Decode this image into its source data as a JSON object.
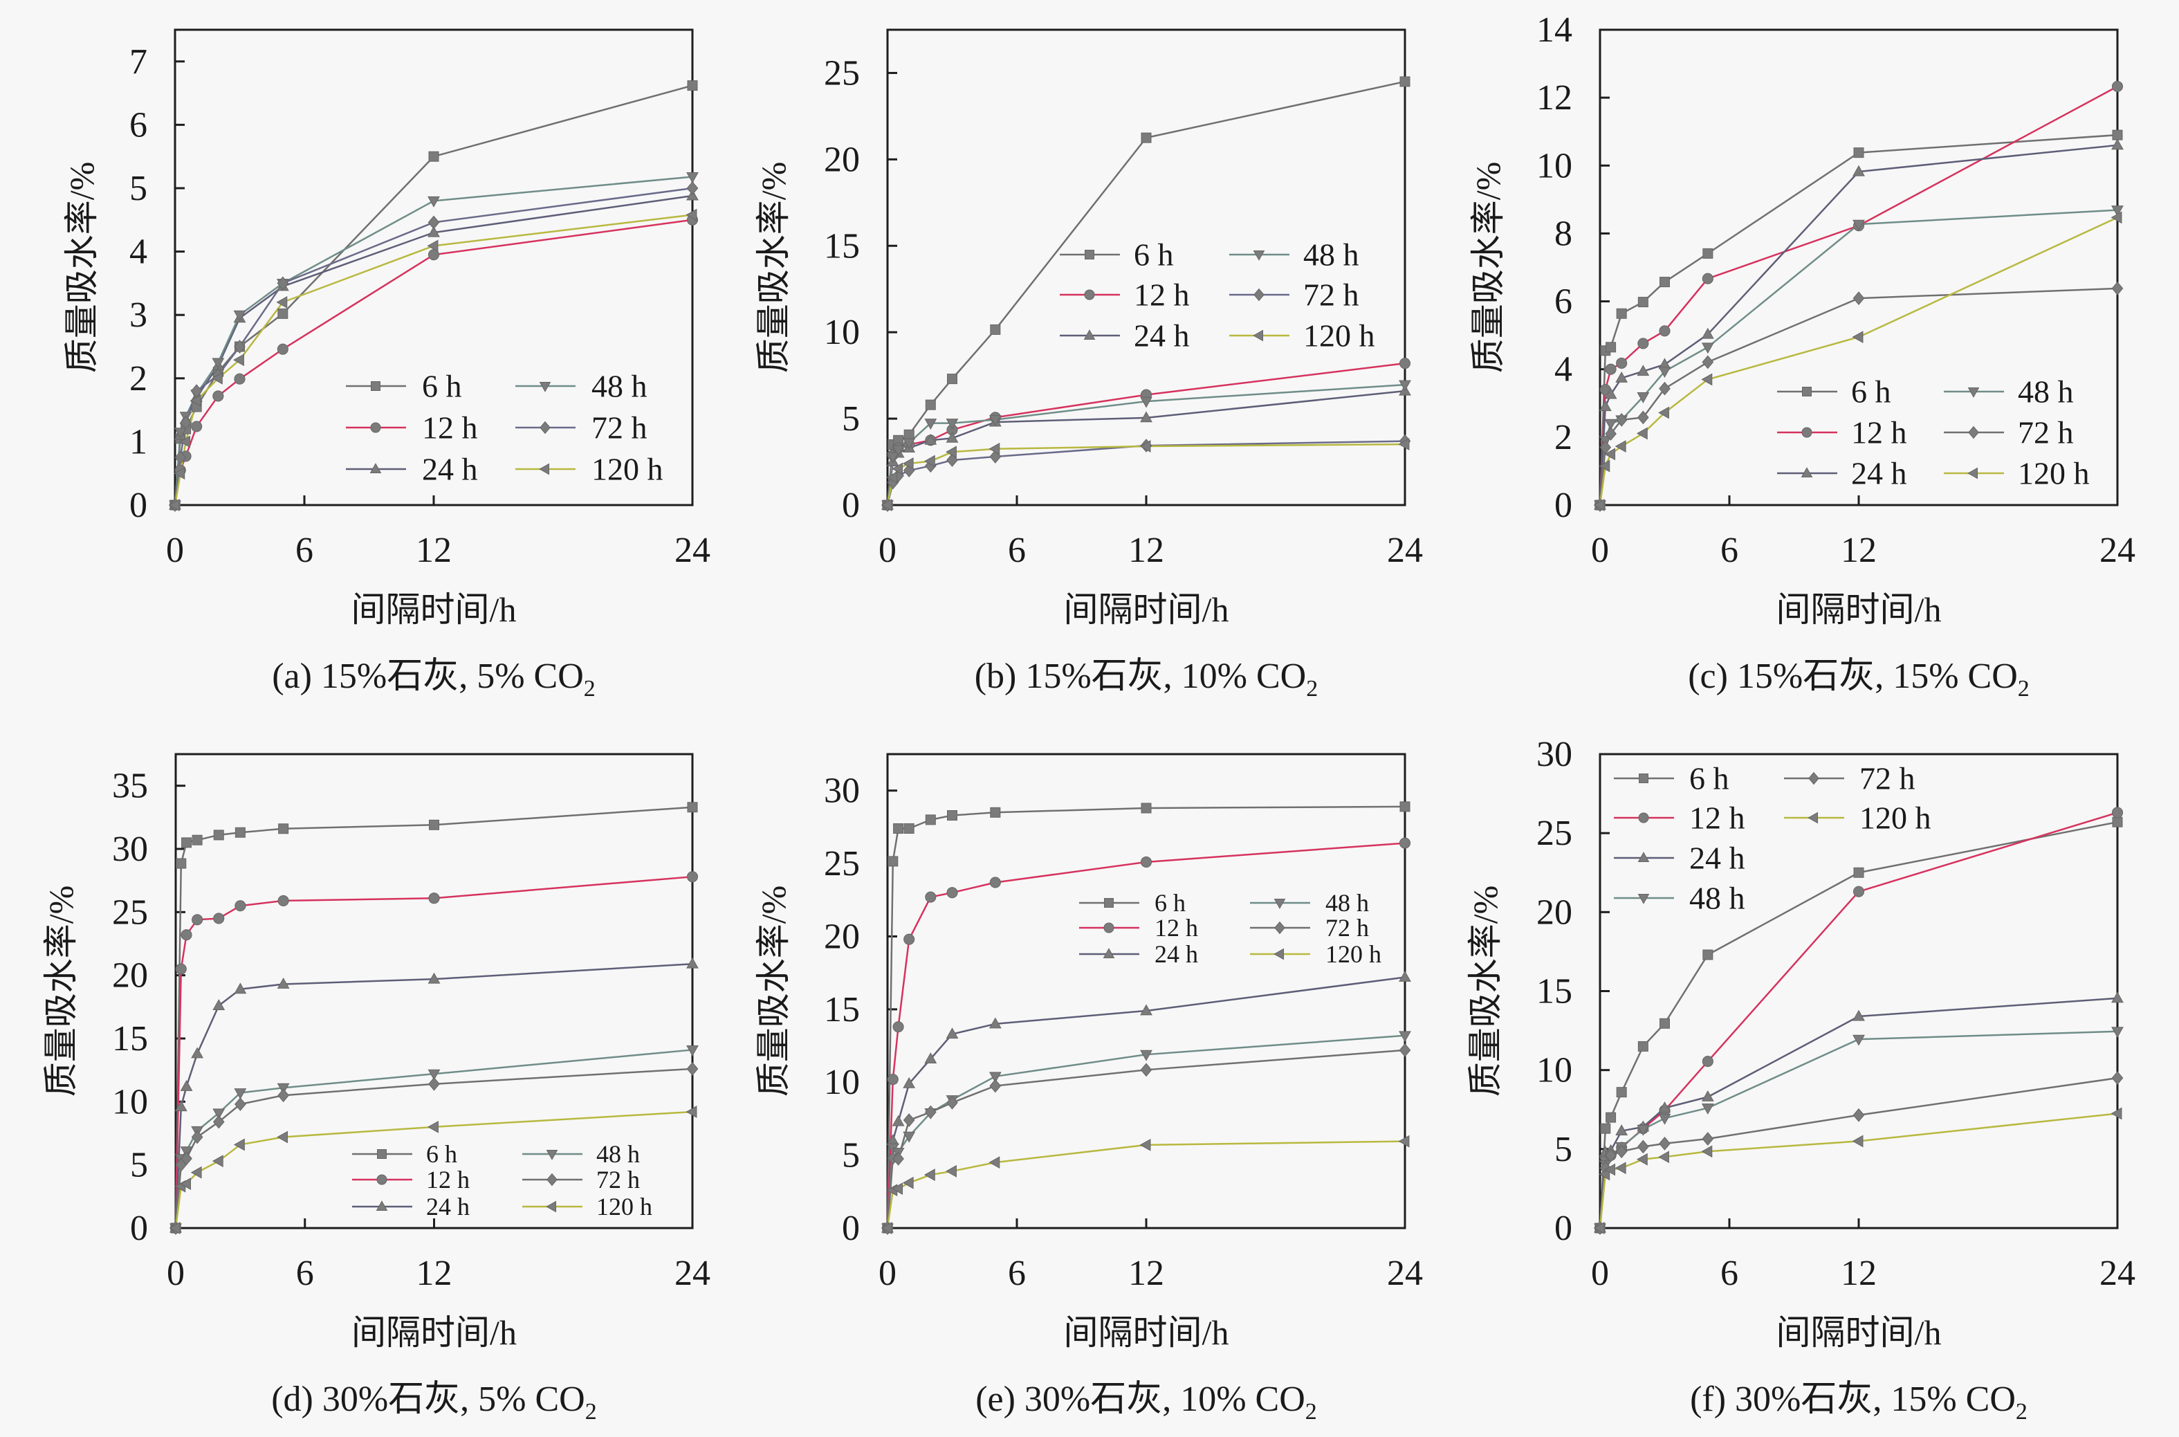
{
  "style": {
    "background": "#f7f7f7",
    "axis_color": "#1e1e1e",
    "marker_color": "#7b7b7b"
  },
  "chart_data": [
    {
      "id": "a",
      "type": "line",
      "caption": "(a) 15%石灰, 5% CO",
      "caption_subscript": "2",
      "xlabel": "间隔时间/h",
      "ylabel": "质量吸水率/%",
      "xlim": [
        0,
        24
      ],
      "ylim": [
        0,
        7.5
      ],
      "xticks": [
        0,
        6,
        12,
        24
      ],
      "xtick_labels": [
        "0",
        "6",
        "12",
        "24"
      ],
      "yticks": [
        0,
        1,
        2,
        3,
        4,
        5,
        6,
        7
      ],
      "ytick_labels": [
        "0",
        "1",
        "2",
        "3",
        "4",
        "5",
        "6",
        "7"
      ],
      "grid": false,
      "legend": {
        "placement": "bottom-right",
        "columns": 2
      },
      "x": [
        0,
        0.25,
        0.5,
        1,
        2,
        3,
        5,
        12,
        24
      ],
      "series": [
        {
          "name": "6 h",
          "marker": "square",
          "color": "#707070",
          "values": [
            0,
            1.05,
            1.2,
            1.55,
            2.1,
            2.5,
            3.02,
            5.5,
            6.62
          ]
        },
        {
          "name": "12 h",
          "marker": "circle",
          "color": "#d6325e",
          "values": [
            0,
            0.55,
            0.77,
            1.24,
            1.72,
            1.99,
            2.46,
            3.95,
            4.5
          ]
        },
        {
          "name": "24 h",
          "marker": "triangle-up",
          "color": "#5e5e78",
          "values": [
            0,
            1.1,
            1.35,
            1.7,
            2.2,
            2.95,
            3.45,
            4.3,
            4.88
          ]
        },
        {
          "name": "48 h",
          "marker": "triangle-down",
          "color": "#6f8d88",
          "values": [
            0,
            1.15,
            1.4,
            1.75,
            2.25,
            3.0,
            3.5,
            4.8,
            5.18
          ]
        },
        {
          "name": "72 h",
          "marker": "diamond",
          "color": "#6a6a8a",
          "values": [
            0,
            0.75,
            1.3,
            1.8,
            2.05,
            2.5,
            3.5,
            4.46,
            5.0
          ]
        },
        {
          "name": "120 h",
          "marker": "triangle-left",
          "color": "#b8b840",
          "values": [
            0,
            0.5,
            1.0,
            1.65,
            2.0,
            2.29,
            3.2,
            4.09,
            4.58
          ]
        }
      ]
    },
    {
      "id": "b",
      "type": "line",
      "caption": "(b) 15%石灰, 10% CO",
      "caption_subscript": "2",
      "xlabel": "间隔时间/h",
      "ylabel": "质量吸水率/%",
      "xlim": [
        0,
        24
      ],
      "ylim": [
        0,
        27.5
      ],
      "xticks": [
        0,
        6,
        12,
        24
      ],
      "xtick_labels": [
        "0",
        "6",
        "12",
        "24"
      ],
      "yticks": [
        0,
        5,
        10,
        15,
        20,
        25
      ],
      "ytick_labels": [
        "0",
        "5",
        "10",
        "15",
        "20",
        "25"
      ],
      "grid": false,
      "legend": {
        "placement": "center-right",
        "columns": 2
      },
      "x": [
        0,
        0.25,
        0.5,
        1,
        2,
        3,
        5,
        12,
        24
      ],
      "series": [
        {
          "name": "6 h",
          "marker": "square",
          "color": "#707070",
          "values": [
            0,
            3.5,
            3.75,
            4.07,
            5.8,
            7.3,
            10.15,
            21.25,
            24.5
          ]
        },
        {
          "name": "12 h",
          "marker": "circle",
          "color": "#d6325e",
          "values": [
            0,
            2.9,
            3.3,
            3.5,
            3.75,
            4.35,
            5.07,
            6.38,
            8.2
          ]
        },
        {
          "name": "24 h",
          "marker": "triangle-up",
          "color": "#5e5e78",
          "values": [
            0,
            2.5,
            3.0,
            3.3,
            3.75,
            3.87,
            4.8,
            5.05,
            6.6
          ]
        },
        {
          "name": "48 h",
          "marker": "triangle-down",
          "color": "#6f8d88",
          "values": [
            0,
            2.8,
            3.2,
            3.6,
            4.74,
            4.74,
            4.94,
            6.0,
            6.96
          ]
        },
        {
          "name": "72 h",
          "marker": "diamond",
          "color": "#6a6a8a",
          "values": [
            0,
            1.3,
            1.7,
            2.0,
            2.27,
            2.6,
            2.8,
            3.44,
            3.7
          ]
        },
        {
          "name": "120 h",
          "marker": "triangle-left",
          "color": "#b8b840",
          "values": [
            0,
            1.6,
            2.1,
            2.4,
            2.54,
            3.07,
            3.25,
            3.4,
            3.52
          ]
        }
      ]
    },
    {
      "id": "c",
      "type": "line",
      "caption": "(c) 15%石灰, 15% CO",
      "caption_subscript": "2",
      "xlabel": "间隔时间/h",
      "ylabel": "质量吸水率/%",
      "xlim": [
        0,
        24
      ],
      "ylim": [
        0,
        14
      ],
      "xticks": [
        0,
        6,
        12,
        24
      ],
      "xtick_labels": [
        "0",
        "6",
        "12",
        "24"
      ],
      "yticks": [
        0,
        2,
        4,
        6,
        8,
        10,
        12,
        14
      ],
      "ytick_labels": [
        "0",
        "2",
        "4",
        "6",
        "8",
        "10",
        "12",
        "14"
      ],
      "grid": false,
      "legend": {
        "placement": "bottom-right",
        "columns": 2
      },
      "x": [
        0,
        0.25,
        0.5,
        1,
        2,
        3,
        5,
        12,
        24
      ],
      "series": [
        {
          "name": "6 h",
          "marker": "square",
          "color": "#707070",
          "values": [
            0,
            4.55,
            4.65,
            5.64,
            5.98,
            6.57,
            7.41,
            10.38,
            10.9
          ]
        },
        {
          "name": "12 h",
          "marker": "circle",
          "color": "#d6325e",
          "values": [
            0,
            3.4,
            4.0,
            4.18,
            4.76,
            5.13,
            6.67,
            8.23,
            12.33
          ]
        },
        {
          "name": "24 h",
          "marker": "triangle-up",
          "color": "#5e5e78",
          "values": [
            0,
            2.9,
            3.26,
            3.74,
            3.94,
            4.14,
            5.03,
            9.82,
            10.6
          ]
        },
        {
          "name": "48 h",
          "marker": "triangle-down",
          "color": "#6f8d88",
          "values": [
            0,
            1.9,
            2.4,
            2.51,
            3.19,
            3.94,
            4.65,
            8.27,
            8.69
          ]
        },
        {
          "name": "72 h",
          "marker": "diamond",
          "color": "#707070",
          "values": [
            0,
            1.7,
            2.1,
            2.51,
            2.58,
            3.43,
            4.21,
            6.09,
            6.38
          ]
        },
        {
          "name": "120 h",
          "marker": "triangle-left",
          "color": "#b8b840",
          "values": [
            0,
            1.15,
            1.5,
            1.73,
            2.11,
            2.72,
            3.7,
            4.95,
            8.47
          ]
        }
      ]
    },
    {
      "id": "d",
      "type": "line",
      "caption": "(d) 30%石灰, 5% CO",
      "caption_subscript": "2",
      "xlabel": "间隔时间/h",
      "ylabel": "质量吸水率/%",
      "xlim": [
        0,
        24
      ],
      "ylim": [
        0,
        37.5
      ],
      "xticks": [
        0,
        6,
        12,
        24
      ],
      "xtick_labels": [
        "0",
        "6",
        "12",
        "24"
      ],
      "yticks": [
        0,
        5,
        10,
        15,
        20,
        25,
        30,
        35
      ],
      "ytick_labels": [
        "0",
        "5",
        "10",
        "15",
        "20",
        "25",
        "30",
        "35"
      ],
      "grid": false,
      "legend": {
        "placement": "bottom-right",
        "columns": 2
      },
      "x": [
        0,
        0.25,
        0.5,
        1,
        2,
        3,
        5,
        12,
        24
      ],
      "series": [
        {
          "name": "6 h",
          "marker": "square",
          "color": "#707070",
          "values": [
            0,
            28.85,
            30.5,
            30.7,
            31.1,
            31.3,
            31.6,
            31.9,
            33.3
          ]
        },
        {
          "name": "12 h",
          "marker": "circle",
          "color": "#d6325e",
          "values": [
            0,
            20.5,
            23.2,
            24.4,
            24.5,
            25.5,
            25.9,
            26.1,
            27.8
          ]
        },
        {
          "name": "24 h",
          "marker": "triangle-up",
          "color": "#5e5e78",
          "values": [
            0,
            9.6,
            11.2,
            13.8,
            17.6,
            18.9,
            19.3,
            19.7,
            20.9
          ]
        },
        {
          "name": "48 h",
          "marker": "triangle-down",
          "color": "#6f8d88",
          "values": [
            0,
            5.5,
            6.1,
            7.7,
            9.1,
            10.7,
            11.1,
            12.2,
            14.1
          ]
        },
        {
          "name": "72 h",
          "marker": "diamond",
          "color": "#707070",
          "values": [
            0,
            5.0,
            5.5,
            7.2,
            8.4,
            9.8,
            10.5,
            11.4,
            12.6
          ]
        },
        {
          "name": "120 h",
          "marker": "triangle-left",
          "color": "#b8b840",
          "values": [
            0,
            3.3,
            3.5,
            4.4,
            5.3,
            6.6,
            7.2,
            8.0,
            9.2
          ]
        }
      ]
    },
    {
      "id": "e",
      "type": "line",
      "caption": "(e) 30%石灰, 10% CO",
      "caption_subscript": "2",
      "xlabel": "间隔时间/h",
      "ylabel": "质量吸水率/%",
      "xlim": [
        0,
        24
      ],
      "ylim": [
        0,
        32.5
      ],
      "xticks": [
        0,
        6,
        12,
        24
      ],
      "xtick_labels": [
        "0",
        "6",
        "12",
        "24"
      ],
      "yticks": [
        0,
        5,
        10,
        15,
        20,
        25,
        30
      ],
      "ytick_labels": [
        "0",
        "5",
        "10",
        "15",
        "20",
        "25",
        "30"
      ],
      "grid": false,
      "legend": {
        "placement": "center-right",
        "columns": 2
      },
      "x": [
        0,
        0.25,
        0.5,
        1,
        2,
        3,
        5,
        12,
        24
      ],
      "series": [
        {
          "name": "6 h",
          "marker": "square",
          "color": "#707070",
          "values": [
            0,
            25.15,
            27.4,
            27.4,
            28.0,
            28.3,
            28.5,
            28.8,
            28.9
          ]
        },
        {
          "name": "12 h",
          "marker": "circle",
          "color": "#d6325e",
          "values": [
            0,
            10.2,
            13.8,
            19.8,
            22.7,
            23.0,
            23.7,
            25.1,
            26.4
          ]
        },
        {
          "name": "24 h",
          "marker": "triangle-up",
          "color": "#5e5e78",
          "values": [
            0,
            6.0,
            7.3,
            9.9,
            11.6,
            13.3,
            14.0,
            14.9,
            17.2
          ]
        },
        {
          "name": "48 h",
          "marker": "triangle-down",
          "color": "#6f8d88",
          "values": [
            0,
            5.5,
            5.2,
            6.3,
            7.9,
            8.8,
            10.4,
            11.9,
            13.2
          ]
        },
        {
          "name": "72 h",
          "marker": "diamond",
          "color": "#707070",
          "values": [
            0,
            4.8,
            4.75,
            7.4,
            7.95,
            8.6,
            9.75,
            10.85,
            12.2
          ]
        },
        {
          "name": "120 h",
          "marker": "triangle-left",
          "color": "#b8b840",
          "values": [
            0,
            2.6,
            2.7,
            3.1,
            3.65,
            3.9,
            4.5,
            5.7,
            5.95
          ]
        }
      ]
    },
    {
      "id": "f",
      "type": "line",
      "caption": "(f) 30%石灰, 15% CO",
      "caption_subscript": "2",
      "xlabel": "间隔时间/h",
      "ylabel": "质量吸水率/%",
      "xlim": [
        0,
        24
      ],
      "ylim": [
        0,
        30
      ],
      "xticks": [
        0,
        6,
        12,
        24
      ],
      "xtick_labels": [
        "0",
        "6",
        "12",
        "24"
      ],
      "yticks": [
        0,
        5,
        10,
        15,
        20,
        25,
        30
      ],
      "ytick_labels": [
        "0",
        "5",
        "10",
        "15",
        "20",
        "25",
        "30"
      ],
      "grid": false,
      "legend": {
        "placement": "top-left",
        "columns": 2
      },
      "x": [
        0,
        0.25,
        0.5,
        1,
        2,
        3,
        5,
        12,
        24
      ],
      "series": [
        {
          "name": "6 h",
          "marker": "square",
          "color": "#707070",
          "values": [
            0,
            6.3,
            7.0,
            8.6,
            11.5,
            12.95,
            17.3,
            22.5,
            25.7
          ]
        },
        {
          "name": "12 h",
          "marker": "circle",
          "color": "#d6325e",
          "values": [
            0,
            4.5,
            4.6,
            5.1,
            6.3,
            7.45,
            10.55,
            21.3,
            26.3
          ]
        },
        {
          "name": "24 h",
          "marker": "triangle-up",
          "color": "#5e5e78",
          "values": [
            0,
            4.8,
            4.9,
            6.15,
            6.4,
            7.6,
            8.3,
            13.4,
            14.55
          ]
        },
        {
          "name": "48 h",
          "marker": "triangle-down",
          "color": "#6f8d88",
          "values": [
            0,
            4.0,
            4.6,
            5.15,
            6.25,
            6.95,
            7.6,
            11.95,
            12.45
          ]
        },
        {
          "name": "72 h",
          "marker": "diamond",
          "color": "#707070",
          "values": [
            0,
            3.8,
            4.6,
            4.85,
            5.15,
            5.35,
            5.65,
            7.15,
            9.5
          ]
        },
        {
          "name": "120 h",
          "marker": "triangle-left",
          "color": "#b8b840",
          "values": [
            0,
            3.4,
            3.7,
            3.8,
            4.35,
            4.5,
            4.85,
            5.5,
            7.25
          ]
        }
      ]
    }
  ]
}
